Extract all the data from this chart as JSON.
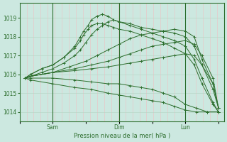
{
  "title": "",
  "xlabel": "Pression niveau de la mer( hPa )",
  "ylabel": "",
  "bg_color": "#cce8e0",
  "line_color": "#2d6e2d",
  "grid_color_v": "#e8c8c8",
  "grid_color_h": "#b8d8c8",
  "ylim": [
    1013.5,
    1019.8
  ],
  "yticks": [
    1014,
    1015,
    1016,
    1017,
    1018,
    1019
  ],
  "xtick_labels": [
    "",
    "Sam",
    "",
    "Dim",
    "",
    "Lun",
    ""
  ],
  "xtick_positions": [
    0,
    30,
    60,
    90,
    120,
    150,
    180
  ],
  "vline_positions": [
    30,
    90,
    150
  ],
  "num_vgrid": 30,
  "xlim": [
    0,
    185
  ],
  "lines": [
    {
      "x": [
        5,
        10,
        30,
        50,
        65,
        80,
        90,
        100,
        110,
        120,
        130,
        140,
        150,
        160,
        170,
        180
      ],
      "y": [
        1015.8,
        1015.7,
        1015.5,
        1015.3,
        1015.2,
        1015.0,
        1014.9,
        1014.8,
        1014.7,
        1014.6,
        1014.5,
        1014.3,
        1014.1,
        1014.0,
        1014.0,
        1014.0
      ]
    },
    {
      "x": [
        5,
        10,
        30,
        50,
        65,
        80,
        90,
        100,
        110,
        120,
        130,
        140,
        150,
        160,
        170,
        180
      ],
      "y": [
        1015.8,
        1015.8,
        1015.8,
        1015.7,
        1015.6,
        1015.5,
        1015.5,
        1015.4,
        1015.3,
        1015.2,
        1015.0,
        1014.8,
        1014.4,
        1014.2,
        1014.0,
        1014.0
      ]
    },
    {
      "x": [
        5,
        10,
        30,
        50,
        65,
        80,
        90,
        100,
        110,
        120,
        130,
        140,
        150,
        158,
        165,
        175,
        180
      ],
      "y": [
        1015.8,
        1015.9,
        1016.1,
        1016.2,
        1016.3,
        1016.4,
        1016.5,
        1016.6,
        1016.7,
        1016.8,
        1016.9,
        1017.0,
        1017.1,
        1017.0,
        1016.5,
        1015.5,
        1014.2
      ]
    },
    {
      "x": [
        5,
        10,
        30,
        50,
        65,
        80,
        90,
        100,
        110,
        120,
        130,
        140,
        150,
        158,
        165,
        175,
        180
      ],
      "y": [
        1015.8,
        1015.9,
        1016.1,
        1016.3,
        1016.5,
        1016.7,
        1016.9,
        1017.1,
        1017.3,
        1017.5,
        1017.6,
        1017.7,
        1017.8,
        1017.6,
        1017.0,
        1015.8,
        1014.2
      ]
    },
    {
      "x": [
        5,
        10,
        30,
        45,
        60,
        70,
        80,
        90,
        100,
        110,
        120,
        130,
        140,
        150,
        158,
        165,
        175,
        180
      ],
      "y": [
        1015.8,
        1015.9,
        1016.1,
        1016.4,
        1016.7,
        1017.0,
        1017.3,
        1017.6,
        1017.9,
        1018.1,
        1018.2,
        1018.3,
        1018.4,
        1018.3,
        1018.0,
        1016.8,
        1015.5,
        1014.2
      ]
    },
    {
      "x": [
        5,
        10,
        20,
        30,
        40,
        50,
        55,
        60,
        65,
        70,
        75,
        80,
        85,
        90,
        100,
        110,
        120,
        130,
        140,
        150,
        158,
        165,
        175,
        180
      ],
      "y": [
        1015.8,
        1015.9,
        1016.1,
        1016.3,
        1016.6,
        1017.0,
        1017.3,
        1017.7,
        1018.1,
        1018.4,
        1018.6,
        1018.8,
        1018.9,
        1018.8,
        1018.7,
        1018.5,
        1018.4,
        1018.3,
        1018.2,
        1018.0,
        1017.5,
        1016.5,
        1015.2,
        1014.2
      ]
    },
    {
      "x": [
        5,
        10,
        20,
        30,
        40,
        50,
        55,
        58,
        62,
        65,
        70,
        75,
        80,
        85,
        90,
        100,
        110,
        120,
        130,
        140,
        150,
        158,
        165,
        175,
        180
      ],
      "y": [
        1015.8,
        1016.0,
        1016.3,
        1016.5,
        1016.9,
        1017.5,
        1018.0,
        1018.3,
        1018.6,
        1018.9,
        1019.1,
        1019.2,
        1019.1,
        1018.9,
        1018.8,
        1018.6,
        1018.4,
        1018.2,
        1018.0,
        1017.8,
        1017.5,
        1016.8,
        1015.8,
        1014.5,
        1014.0
      ]
    },
    {
      "x": [
        5,
        10,
        20,
        30,
        40,
        50,
        55,
        58,
        62,
        65,
        70,
        75,
        80,
        85,
        90,
        100,
        110,
        120,
        130,
        140,
        150,
        158,
        165,
        175,
        180
      ],
      "y": [
        1015.8,
        1016.0,
        1016.3,
        1016.5,
        1016.9,
        1017.4,
        1017.8,
        1018.1,
        1018.4,
        1018.6,
        1018.7,
        1018.7,
        1018.6,
        1018.5,
        1018.4,
        1018.3,
        1018.1,
        1017.9,
        1017.7,
        1017.4,
        1017.1,
        1016.5,
        1015.5,
        1014.4,
        1014.0
      ]
    }
  ]
}
